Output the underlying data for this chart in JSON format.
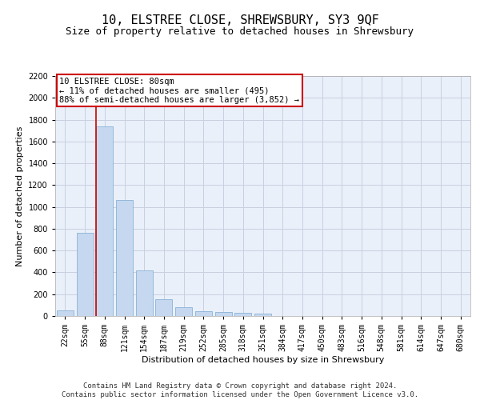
{
  "title": "10, ELSTREE CLOSE, SHREWSBURY, SY3 9QF",
  "subtitle": "Size of property relative to detached houses in Shrewsbury",
  "xlabel": "Distribution of detached houses by size in Shrewsbury",
  "ylabel": "Number of detached properties",
  "footer_line1": "Contains HM Land Registry data © Crown copyright and database right 2024.",
  "footer_line2": "Contains public sector information licensed under the Open Government Licence v3.0.",
  "bar_categories": [
    "22sqm",
    "55sqm",
    "88sqm",
    "121sqm",
    "154sqm",
    "187sqm",
    "219sqm",
    "252sqm",
    "285sqm",
    "318sqm",
    "351sqm",
    "384sqm",
    "417sqm",
    "450sqm",
    "483sqm",
    "516sqm",
    "548sqm",
    "581sqm",
    "614sqm",
    "647sqm",
    "680sqm"
  ],
  "bar_values": [
    55,
    765,
    1740,
    1065,
    420,
    155,
    80,
    47,
    38,
    28,
    20,
    0,
    0,
    0,
    0,
    0,
    0,
    0,
    0,
    0,
    0
  ],
  "bar_color": "#c5d8f0",
  "bar_edge_color": "#7ba7d0",
  "ylim": [
    0,
    2200
  ],
  "yticks": [
    0,
    200,
    400,
    600,
    800,
    1000,
    1200,
    1400,
    1600,
    1800,
    2000,
    2200
  ],
  "grid_color": "#c8d0e0",
  "bg_color": "#eaf0fa",
  "annotation_text": "10 ELSTREE CLOSE: 80sqm\n← 11% of detached houses are smaller (495)\n88% of semi-detached houses are larger (3,852) →",
  "annotation_box_color": "#ffffff",
  "annotation_box_edge": "#cc0000",
  "red_line_color": "#cc0000",
  "title_fontsize": 11,
  "subtitle_fontsize": 9,
  "axis_label_fontsize": 8,
  "tick_fontsize": 7,
  "annotation_fontsize": 7.5,
  "footer_fontsize": 6.5
}
